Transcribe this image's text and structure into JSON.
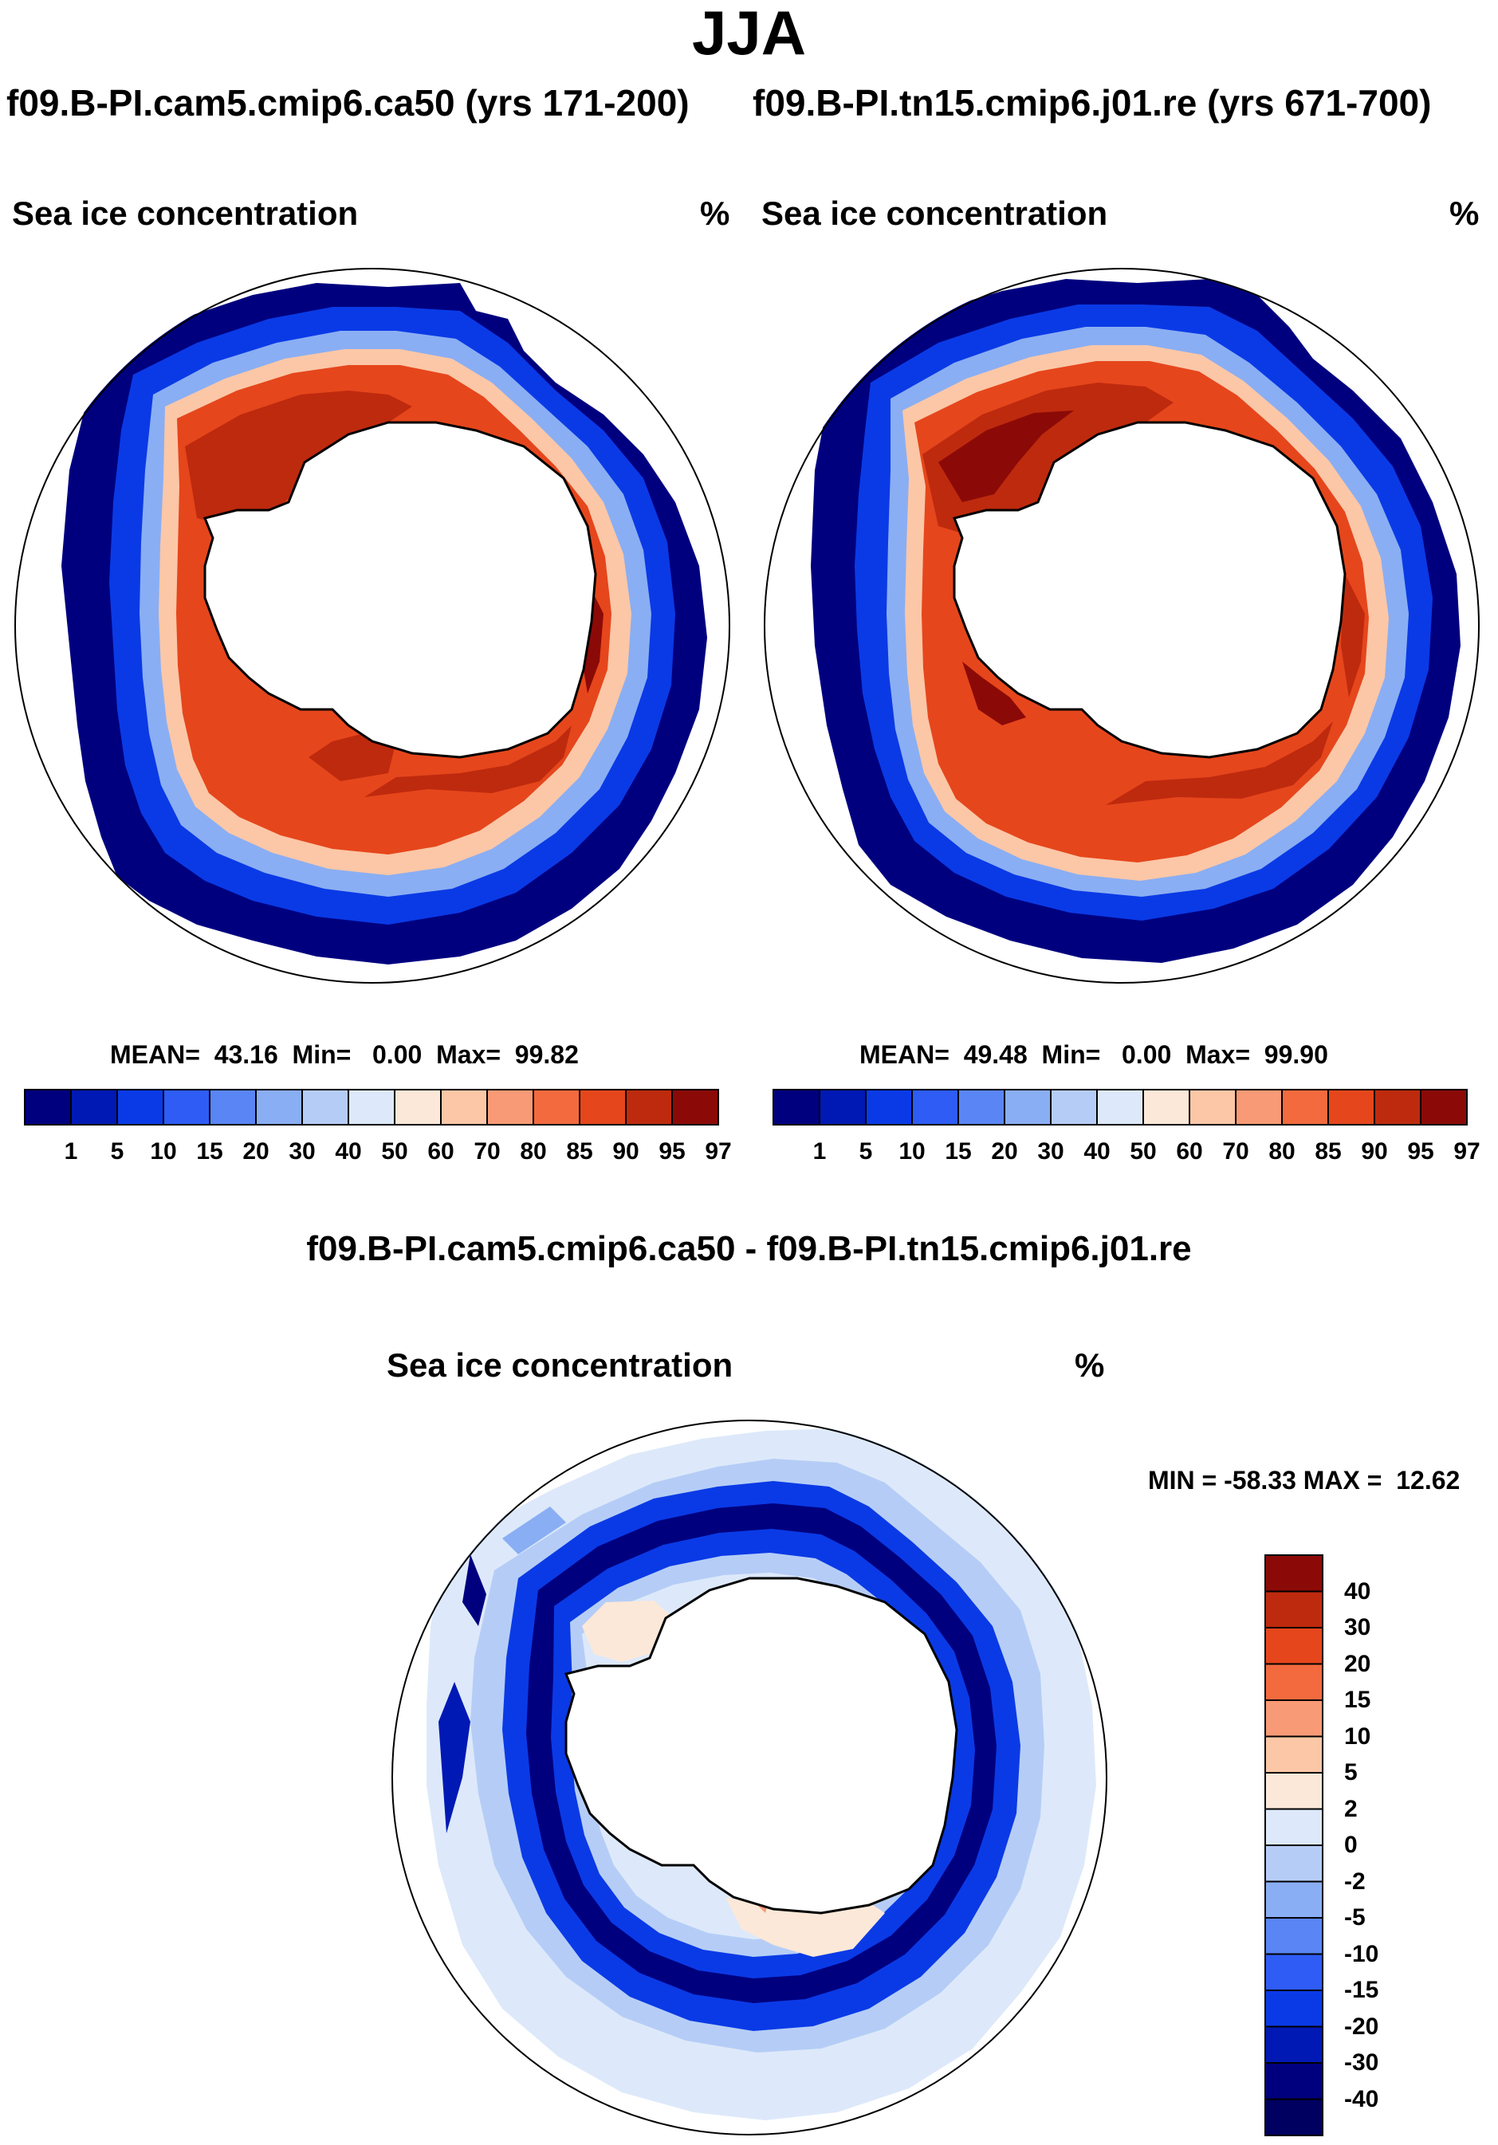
{
  "figure": {
    "title": "JJA",
    "case_a_title": "f09.B-PI.cam5.cmip6.ca50 (yrs 171-200)",
    "case_b_title": "f09.B-PI.tn15.cmip6.j01.re (yrs 671-700)",
    "diff_title": "f09.B-PI.cam5.cmip6.ca50 - f09.B-PI.tn15.cmip6.j01.re"
  },
  "panels": [
    {
      "id": "case_a",
      "variable": "Sea ice concentration",
      "units": "%",
      "stats": "MEAN=  43.16  Min=   0.00  Max=  99.82",
      "mean": 43.16,
      "min": 0.0,
      "max": 99.82
    },
    {
      "id": "case_b",
      "variable": "Sea ice concentration",
      "units": "%",
      "stats": "MEAN=  49.48  Min=   0.00  Max=  99.90",
      "mean": 49.48,
      "min": 0.0,
      "max": 99.9
    },
    {
      "id": "difference",
      "variable": "Sea ice concentration",
      "units": "%",
      "stats": "MIN = -58.33 MAX =  12.62",
      "min": -58.33,
      "max": 12.62
    }
  ],
  "colorbars": {
    "abs_levels": [
      "1",
      "5",
      "10",
      "15",
      "20",
      "30",
      "40",
      "50",
      "60",
      "70",
      "80",
      "85",
      "90",
      "95",
      "97"
    ],
    "abs_colors": [
      "#00007f",
      "#0019b4",
      "#0a3ae6",
      "#2e5cf5",
      "#5a85f5",
      "#8aaef3",
      "#b5cdf6",
      "#dde9fa",
      "#fce8d8",
      "#fbc7a7",
      "#f89a75",
      "#f26a3e",
      "#e6461c",
      "#be2a0e",
      "#8b0a07"
    ],
    "diff_levels": [
      "40",
      "30",
      "20",
      "15",
      "10",
      "5",
      "2",
      "0",
      "-2",
      "-5",
      "-10",
      "-15",
      "-20",
      "-30",
      "-40"
    ],
    "diff_colors": [
      "#8b0a07",
      "#be2a0e",
      "#e6461c",
      "#f26a3e",
      "#f89a75",
      "#fbc7a7",
      "#fce8d8",
      "#dde9fa",
      "#b5cdf6",
      "#8aaef3",
      "#5a85f5",
      "#2e5cf5",
      "#0a3ae6",
      "#0019b4",
      "#00007f",
      "#000060"
    ]
  }
}
